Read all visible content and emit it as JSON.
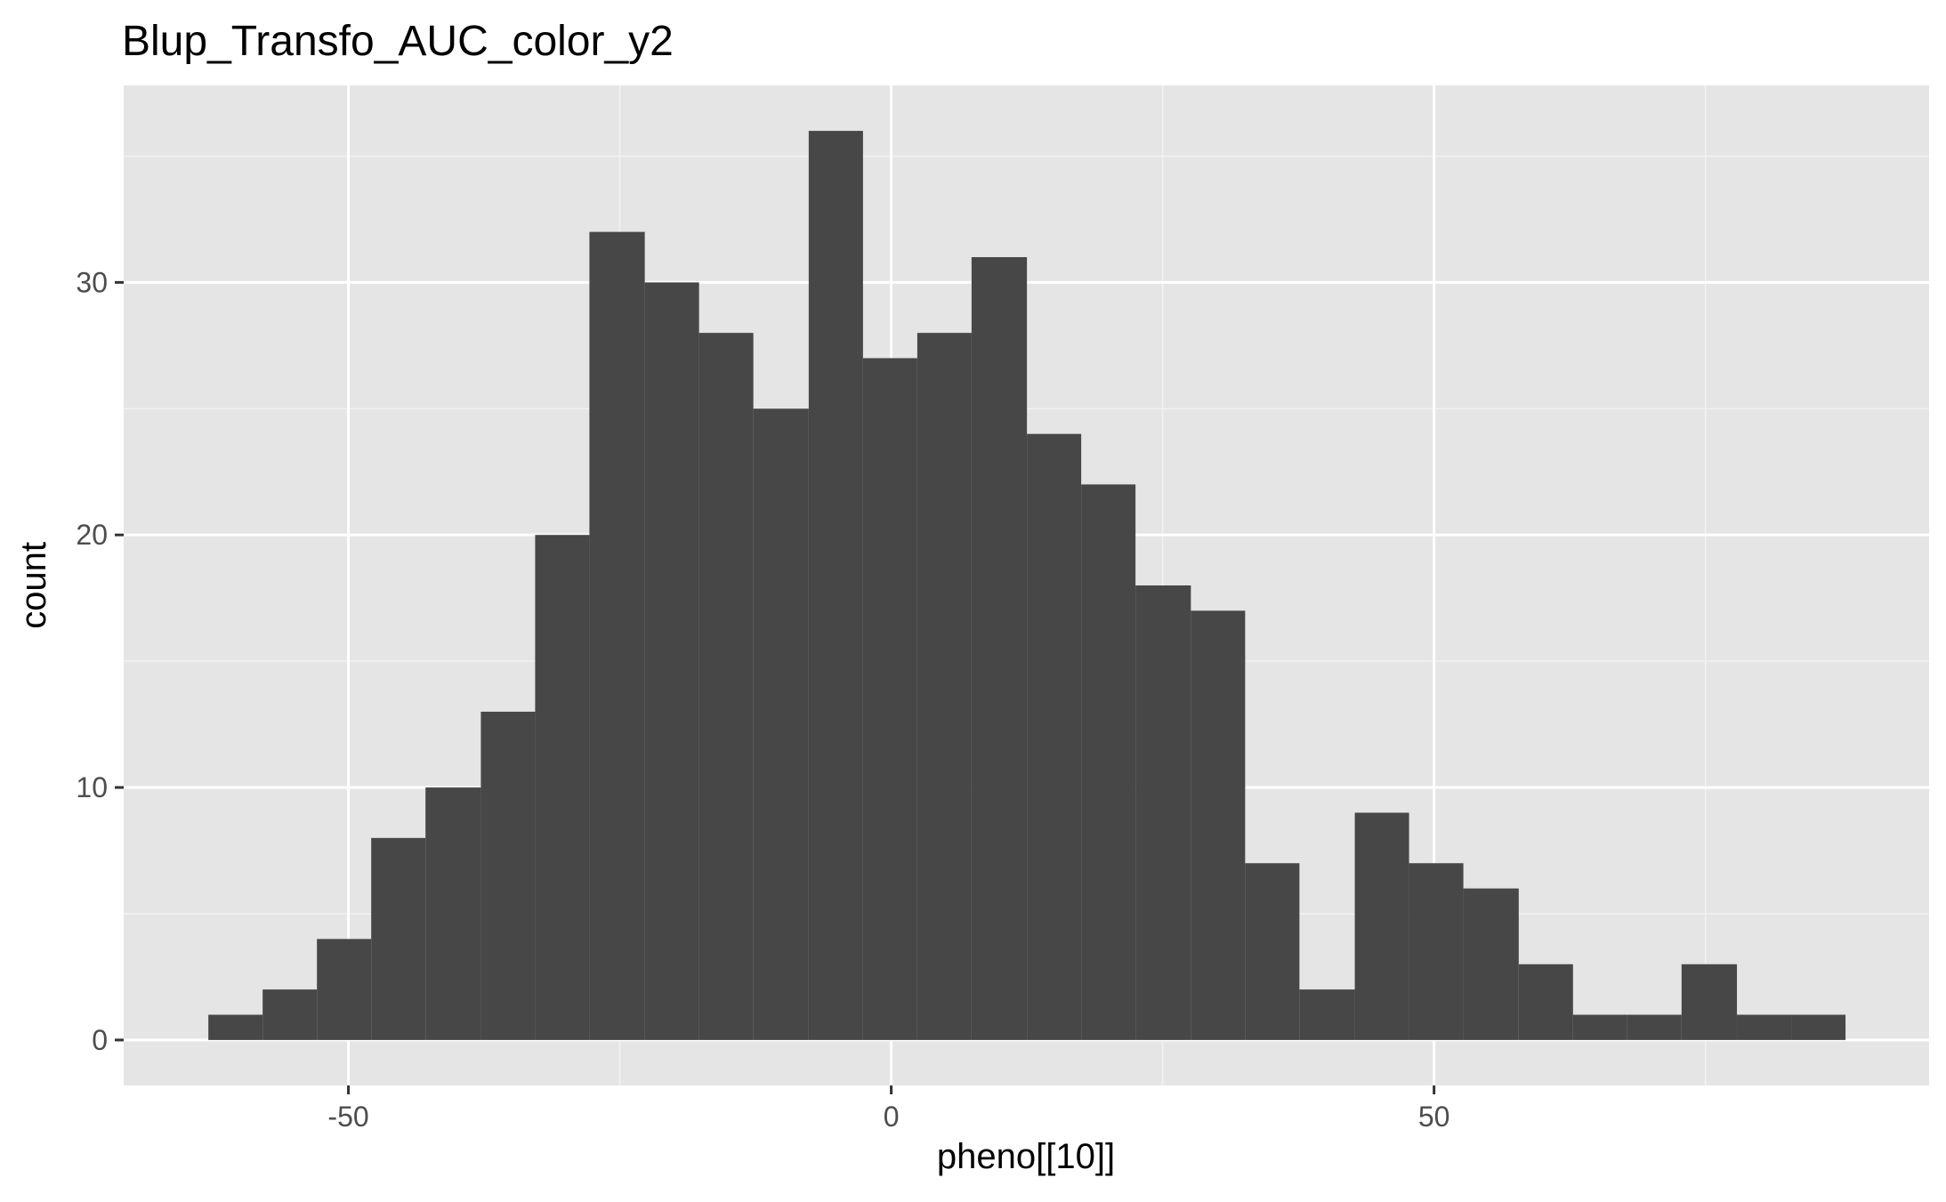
{
  "chart_data": {
    "type": "bar",
    "subtype": "histogram",
    "title": "Blup_Transfo_AUC_color_y2",
    "xlabel": "pheno[[10]]",
    "ylabel": "count",
    "xlim": [
      -70.7,
      95.6
    ],
    "ylim": [
      -1.8,
      37.8
    ],
    "x_ticks": [
      -50,
      0,
      50
    ],
    "x_tick_labels": [
      "-50",
      "0",
      "50"
    ],
    "y_ticks": [
      0,
      10,
      20,
      30
    ],
    "y_tick_labels": [
      "0",
      "10",
      "20",
      "30"
    ],
    "bin_width": 5.03,
    "bins": [
      {
        "x0": -62.9,
        "x1": -57.9,
        "count": 1
      },
      {
        "x0": -57.9,
        "x1": -52.9,
        "count": 2
      },
      {
        "x0": -52.9,
        "x1": -47.9,
        "count": 4
      },
      {
        "x0": -47.9,
        "x1": -42.9,
        "count": 8
      },
      {
        "x0": -42.9,
        "x1": -37.8,
        "count": 10
      },
      {
        "x0": -37.8,
        "x1": -32.8,
        "count": 13
      },
      {
        "x0": -32.8,
        "x1": -27.8,
        "count": 20
      },
      {
        "x0": -27.8,
        "x1": -22.7,
        "count": 32
      },
      {
        "x0": -22.7,
        "x1": -17.7,
        "count": 30
      },
      {
        "x0": -17.7,
        "x1": -12.7,
        "count": 28
      },
      {
        "x0": -12.7,
        "x1": -7.6,
        "count": 25
      },
      {
        "x0": -7.6,
        "x1": -2.6,
        "count": 36
      },
      {
        "x0": -2.6,
        "x1": 2.4,
        "count": 27
      },
      {
        "x0": 2.4,
        "x1": 7.4,
        "count": 28
      },
      {
        "x0": 7.4,
        "x1": 12.5,
        "count": 31
      },
      {
        "x0": 12.5,
        "x1": 17.5,
        "count": 24
      },
      {
        "x0": 17.5,
        "x1": 22.5,
        "count": 22
      },
      {
        "x0": 22.5,
        "x1": 27.6,
        "count": 18
      },
      {
        "x0": 27.6,
        "x1": 32.6,
        "count": 17
      },
      {
        "x0": 32.6,
        "x1": 37.6,
        "count": 7
      },
      {
        "x0": 37.6,
        "x1": 42.7,
        "count": 2
      },
      {
        "x0": 42.7,
        "x1": 47.7,
        "count": 9
      },
      {
        "x0": 47.7,
        "x1": 52.7,
        "count": 7
      },
      {
        "x0": 52.7,
        "x1": 57.8,
        "count": 6
      },
      {
        "x0": 57.8,
        "x1": 62.8,
        "count": 3
      },
      {
        "x0": 62.8,
        "x1": 67.8,
        "count": 1
      },
      {
        "x0": 67.8,
        "x1": 72.8,
        "count": 1
      },
      {
        "x0": 72.8,
        "x1": 77.9,
        "count": 3
      },
      {
        "x0": 77.9,
        "x1": 82.9,
        "count": 1
      },
      {
        "x0": 82.9,
        "x1": 87.9,
        "count": 1
      }
    ],
    "grid": true,
    "legend": "none",
    "colors": {
      "panel_background": "#e5e5e5",
      "grid_major": "#ffffff",
      "grid_minor": "#f2f2f2",
      "bar_fill": "#474747",
      "tick_text": "#4d4d4d",
      "text": "#000000"
    }
  }
}
